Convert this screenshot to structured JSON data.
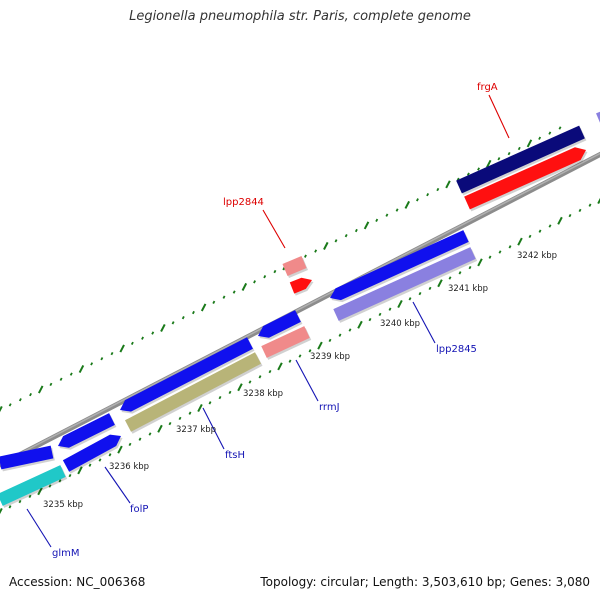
{
  "title": "Legionella pneumophila str. Paris, complete genome",
  "footer": {
    "accession": "Accession: NC_006368",
    "summary": "Topology: circular; Length: 3,503,610 bp; Genes: 3,080"
  },
  "colors": {
    "blue": "#1010ee",
    "navy": "#0a0a7a",
    "red": "#ff1010",
    "lightred": "#f08a8a",
    "lavender": "#8a80e0",
    "olive": "#b8b478",
    "cyan": "#20c8c8",
    "tick_green": "#1a7a1a",
    "backbone": "#8c8c8c",
    "label_red": "#dd0000",
    "label_blue": "#1414b4"
  },
  "scale_labels": [
    "3235 kbp",
    "3236 kbp",
    "3237 kbp",
    "3238 kbp",
    "3239 kbp",
    "3240 kbp",
    "3241 kbp",
    "3242 kbp"
  ],
  "gene_labels": [
    {
      "name": "frgA",
      "color": "label_red"
    },
    {
      "name": "lpp2844",
      "color": "label_red"
    },
    {
      "name": "lpp2845",
      "color": "label_blue"
    },
    {
      "name": "rrmJ",
      "color": "label_blue"
    },
    {
      "name": "ftsH",
      "color": "label_blue"
    },
    {
      "name": "folP",
      "color": "label_blue"
    },
    {
      "name": "glmM",
      "color": "label_blue"
    }
  ]
}
